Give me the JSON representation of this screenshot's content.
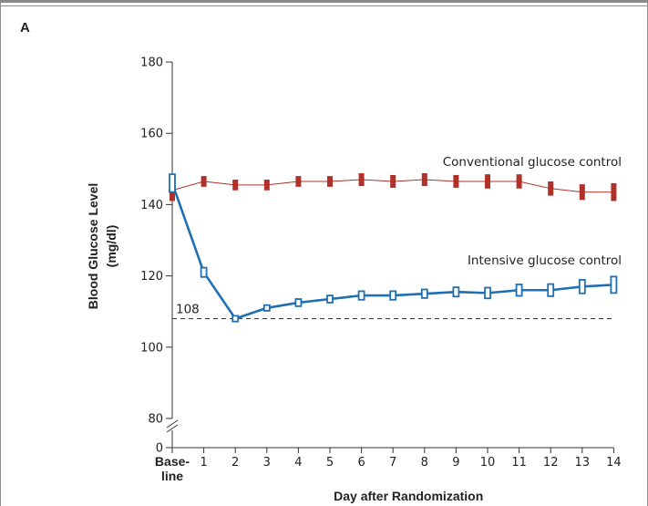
{
  "panel_label": "A",
  "chart_data": {
    "type": "line",
    "panel": "A",
    "ylabel": [
      "Blood Glucose Level",
      "(mg/dl)"
    ],
    "xlabel": "Day after Randomization",
    "x_tick_labels": [
      "Base-\nline",
      "1",
      "2",
      "3",
      "4",
      "5",
      "6",
      "7",
      "8",
      "9",
      "10",
      "11",
      "12",
      "13",
      "14"
    ],
    "x": [
      0,
      1,
      2,
      3,
      4,
      5,
      6,
      7,
      8,
      9,
      10,
      11,
      12,
      13,
      14
    ],
    "y_ticks": [
      0,
      80,
      100,
      120,
      140,
      160,
      180
    ],
    "y_axis_break": [
      0,
      80
    ],
    "ylim": [
      80,
      180
    ],
    "grid": false,
    "reference_line": {
      "value": 108,
      "label": "108",
      "style": "dashed"
    },
    "series": [
      {
        "name": "Conventional glucose control",
        "color": "#b0302a",
        "marker": "filled-bar",
        "values": [
          144,
          146.5,
          145.5,
          145.5,
          146.5,
          146.5,
          147,
          146.5,
          147,
          146.5,
          146.5,
          146.5,
          144.5,
          143.5,
          143.5
        ],
        "ci_half_width": [
          3,
          1.5,
          1.5,
          1.5,
          1.5,
          1.5,
          1.8,
          1.8,
          1.8,
          1.8,
          2,
          2,
          2,
          2.2,
          2.5
        ]
      },
      {
        "name": "Intensive glucose control",
        "color": "#1f6fb2",
        "marker": "open-bar",
        "values": [
          146,
          121,
          108,
          111,
          112.5,
          113.5,
          114.5,
          114.5,
          115,
          115.5,
          115.2,
          116,
          116,
          117,
          117.5
        ],
        "ci_half_width": [
          2.5,
          1.3,
          0.8,
          0.8,
          1,
          1,
          1.2,
          1.2,
          1.2,
          1.3,
          1.5,
          1.6,
          1.7,
          1.9,
          2.3
        ]
      }
    ]
  }
}
